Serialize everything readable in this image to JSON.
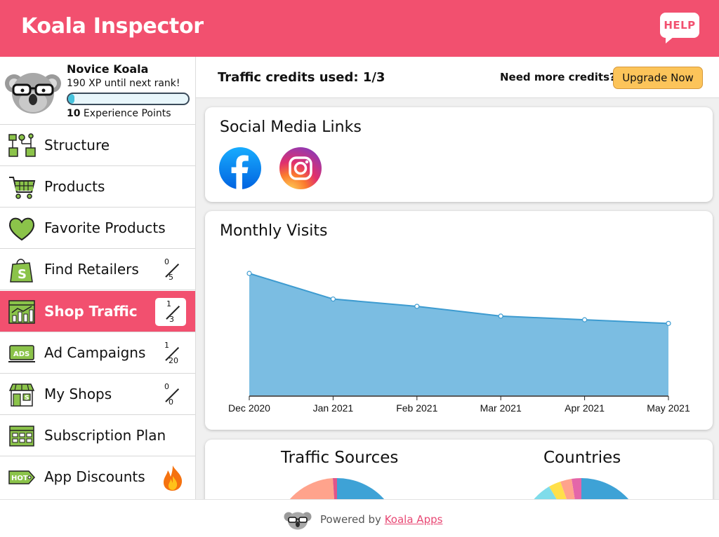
{
  "app": {
    "title": "Koala Inspector",
    "help_label": "HELP",
    "accent_color": "#f2506f"
  },
  "profile": {
    "rank": "Novice Koala",
    "xp_next": "190 XP until next rank!",
    "xp_points_value": "10",
    "xp_points_label": " Experience Points",
    "xp_progress": 0.05
  },
  "sidebar": {
    "items": [
      {
        "label": "Structure",
        "icon": "structure-icon"
      },
      {
        "label": "Products",
        "icon": "cart-icon"
      },
      {
        "label": "Favorite Products",
        "icon": "heart-icon"
      },
      {
        "label": "Find Retailers",
        "icon": "shopify-bag-icon",
        "used": "0",
        "total": "5"
      },
      {
        "label": "Shop Traffic",
        "icon": "traffic-chart-icon",
        "used": "1",
        "total": "3",
        "active": true
      },
      {
        "label": "Ad Campaigns",
        "icon": "ads-icon",
        "used": "1",
        "total": "20"
      },
      {
        "label": "My Shops",
        "icon": "store-icon",
        "used": "0",
        "total": "0"
      },
      {
        "label": "Subscription Plan",
        "icon": "plan-icon"
      },
      {
        "label": "App Discounts",
        "icon": "hot-tag-icon",
        "badge": "fire-icon"
      }
    ]
  },
  "topbar": {
    "credits": "Traffic credits used: 1/3",
    "need_more": "Need more credits?",
    "upgrade_label": "Upgrade Now"
  },
  "social": {
    "title": "Social Media Links",
    "links": [
      {
        "icon": "facebook-icon",
        "color": "#1877f2"
      },
      {
        "icon": "instagram-icon",
        "color": "#e1306c"
      }
    ]
  },
  "chart_data": {
    "type": "area",
    "title": "Monthly Visits",
    "categories": [
      "Dec 2020",
      "Jan 2021",
      "Feb 2021",
      "Mar 2021",
      "Apr 2021",
      "May 2021"
    ],
    "series": [
      {
        "values": [
          100,
          79,
          73,
          65,
          62,
          59
        ]
      }
    ],
    "ylim": [
      0,
      100
    ],
    "grid": false,
    "fill_color": "#7bbde2",
    "line_color": "#3d9bd0"
  },
  "pies": {
    "traffic_title": "Traffic Sources",
    "countries_title": "Countries"
  },
  "footer": {
    "powered_prefix": "Powered by ",
    "link_label": "Koala Apps"
  }
}
